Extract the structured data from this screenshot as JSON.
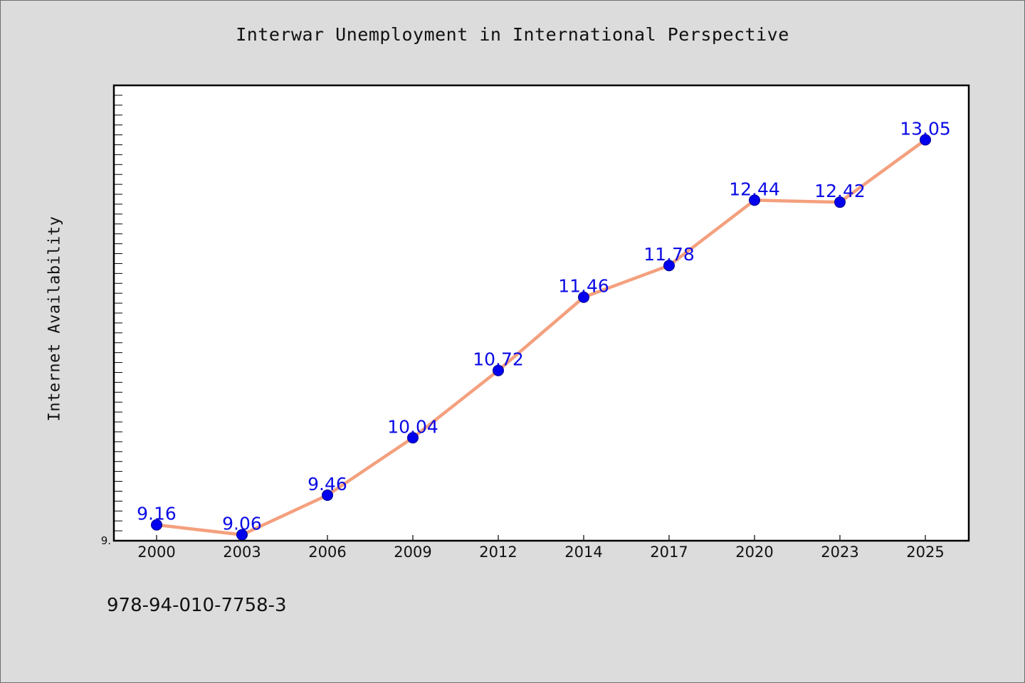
{
  "chart_data": {
    "type": "line",
    "title": "Interwar Unemployment in International Perspective",
    "xlabel": "",
    "ylabel": "Internet Availability",
    "categories": [
      "2000",
      "2003",
      "2006",
      "2009",
      "2012",
      "2014",
      "2017",
      "2020",
      "2023",
      "2025"
    ],
    "values": [
      9.16,
      9.06,
      9.46,
      10.04,
      10.72,
      11.46,
      11.78,
      12.44,
      12.42,
      13.05
    ],
    "data_labels": [
      "9.16",
      "9.06",
      "9.46",
      "10.04",
      "10.72",
      "11.46",
      "11.78",
      "12.44",
      "12.42",
      "13.05"
    ],
    "ylim": [
      9.0,
      13.6
    ],
    "y_tick_labels": [
      "9."
    ],
    "grid": false,
    "legend": "none",
    "colors": {
      "line": "#f4a07e",
      "marker": "#0000ee",
      "data_label": "#0a0ae6",
      "background": "#dcdcdc",
      "plot_background": "#ffffff"
    }
  },
  "footer": {
    "code": "978-94-010-7758-3"
  }
}
